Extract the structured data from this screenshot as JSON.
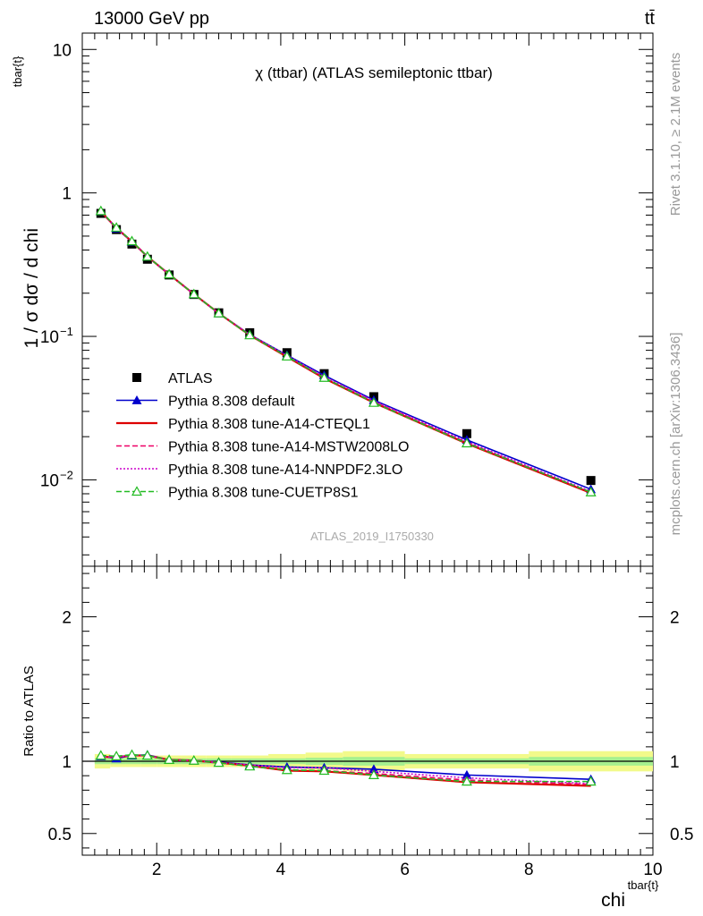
{
  "header": {
    "left": "13000 GeV pp",
    "right": "tt̄"
  },
  "side_labels": {
    "rivet": "Rivet 3.1.10, ≥ 2.1M events",
    "mcplots": "mcplots.cern.ch [arXiv:1306.3436]"
  },
  "chart_data": [
    {
      "type": "scatter",
      "panel": "main",
      "title": "χ (ttbar) (ATLAS semileptonic ttbar)",
      "watermark": "ATLAS_2019_I1750330",
      "ylabel": "1 / σ dσ / d chi",
      "ylabel_superscript": "tbar{t}",
      "ylog": true,
      "xlim": [
        0.8,
        10.0
      ],
      "ylim": [
        0.0025,
        13
      ],
      "ytick_labels": [
        {
          "value": 10,
          "label": "10"
        },
        {
          "value": 1,
          "label": "1"
        },
        {
          "value": 0.1,
          "label": "10",
          "exp": "−1"
        },
        {
          "value": 0.01,
          "label": "10",
          "exp": "−2"
        }
      ],
      "legend_position": "lower-left",
      "x": [
        1.1,
        1.35,
        1.6,
        1.85,
        2.2,
        2.6,
        3.0,
        3.5,
        4.1,
        4.7,
        5.5,
        7.0,
        9.0
      ],
      "series": [
        {
          "name": "ATLAS",
          "style": "data",
          "color": "#000000",
          "values": [
            0.72,
            0.555,
            0.44,
            0.345,
            0.268,
            0.196,
            0.146,
            0.106,
            0.077,
            0.055,
            0.038,
            0.021,
            0.0099
          ]
        },
        {
          "name": "Pythia 8.308 default",
          "style": "triangle-solid",
          "color": "#0000cc",
          "values": [
            0.745,
            0.565,
            0.457,
            0.36,
            0.271,
            0.197,
            0.145,
            0.103,
            0.074,
            0.0535,
            0.036,
            0.019,
            0.0086
          ]
        },
        {
          "name": "Pythia 8.308 tune-A14-CTEQL1",
          "style": "solid",
          "color": "#dd0000",
          "values": [
            0.742,
            0.57,
            0.458,
            0.36,
            0.271,
            0.197,
            0.145,
            0.102,
            0.072,
            0.051,
            0.0345,
            0.0179,
            0.0081
          ]
        },
        {
          "name": "Pythia 8.308 tune-A14-MSTW2008LO",
          "style": "dashed",
          "color": "#ee0066",
          "values": [
            0.742,
            0.57,
            0.458,
            0.36,
            0.271,
            0.197,
            0.145,
            0.102,
            0.0725,
            0.0515,
            0.035,
            0.0182,
            0.0082
          ]
        },
        {
          "name": "Pythia 8.308 tune-A14-NNPDF2.3LO",
          "style": "dotted",
          "color": "#cc00cc",
          "values": [
            0.742,
            0.57,
            0.458,
            0.36,
            0.271,
            0.197,
            0.145,
            0.103,
            0.0735,
            0.0525,
            0.0355,
            0.0185,
            0.0083
          ]
        },
        {
          "name": "Pythia 8.308 tune-CUETP8S1",
          "style": "dashed-triangle-open",
          "color": "#22bb22",
          "values": [
            0.748,
            0.573,
            0.461,
            0.36,
            0.271,
            0.197,
            0.145,
            0.102,
            0.0725,
            0.0515,
            0.0345,
            0.018,
            0.0082
          ]
        }
      ]
    },
    {
      "type": "line",
      "panel": "ratio",
      "ylabel": "Ratio to ATLAS",
      "xlabel": "chi",
      "xlabel_superscript": "tbar{t}",
      "xlim": [
        0.8,
        10.0
      ],
      "ylim": [
        0.35,
        2.35
      ],
      "xticks": [
        2,
        4,
        6,
        8,
        10
      ],
      "yticks": [
        0.5,
        1,
        2
      ],
      "ytick_labels": [
        "0.5",
        "1",
        "2"
      ],
      "x": [
        1.1,
        1.35,
        1.6,
        1.85,
        2.2,
        2.6,
        3.0,
        3.5,
        4.1,
        4.7,
        5.5,
        7.0,
        9.0
      ],
      "band_edges": [
        1.0,
        1.25,
        1.5,
        1.75,
        2.0,
        2.4,
        2.8,
        3.2,
        3.8,
        4.4,
        5.0,
        6.0,
        8.0,
        10.0
      ],
      "band_inner": [
        0.02,
        0.02,
        0.02,
        0.02,
        0.02,
        0.02,
        0.02,
        0.02,
        0.02,
        0.025,
        0.03,
        0.02,
        0.03
      ],
      "band_outer": [
        0.05,
        0.04,
        0.04,
        0.04,
        0.04,
        0.04,
        0.04,
        0.04,
        0.05,
        0.06,
        0.07,
        0.05,
        0.07
      ],
      "series": [
        {
          "name": "Pythia 8.308 default",
          "color": "#0000cc",
          "style": "triangle-solid",
          "values": [
            1.035,
            1.02,
            1.04,
            1.045,
            1.01,
            1.005,
            0.995,
            0.975,
            0.96,
            0.955,
            0.945,
            0.905,
            0.875
          ]
        },
        {
          "name": "Pythia 8.308 tune-A14-CTEQL1",
          "color": "#dd0000",
          "style": "solid",
          "values": [
            1.03,
            1.03,
            1.04,
            1.04,
            1.01,
            1.005,
            0.99,
            0.97,
            0.935,
            0.93,
            0.905,
            0.855,
            0.83
          ]
        },
        {
          "name": "Pythia 8.308 tune-A14-MSTW2008LO",
          "color": "#ee0066",
          "style": "dashed",
          "values": [
            1.03,
            1.03,
            1.04,
            1.04,
            1.01,
            1.005,
            0.99,
            0.97,
            0.94,
            0.935,
            0.915,
            0.87,
            0.84
          ]
        },
        {
          "name": "Pythia 8.308 tune-A14-NNPDF2.3LO",
          "color": "#cc00cc",
          "style": "dotted",
          "values": [
            1.03,
            1.03,
            1.04,
            1.04,
            1.01,
            1.005,
            0.99,
            0.975,
            0.955,
            0.955,
            0.93,
            0.885,
            0.845
          ]
        },
        {
          "name": "Pythia 8.308 tune-CUETP8S1",
          "color": "#22bb22",
          "style": "dashed-triangle-open",
          "values": [
            1.04,
            1.035,
            1.045,
            1.04,
            1.01,
            1.005,
            0.99,
            0.965,
            0.94,
            0.935,
            0.905,
            0.86,
            0.86
          ]
        }
      ]
    }
  ]
}
